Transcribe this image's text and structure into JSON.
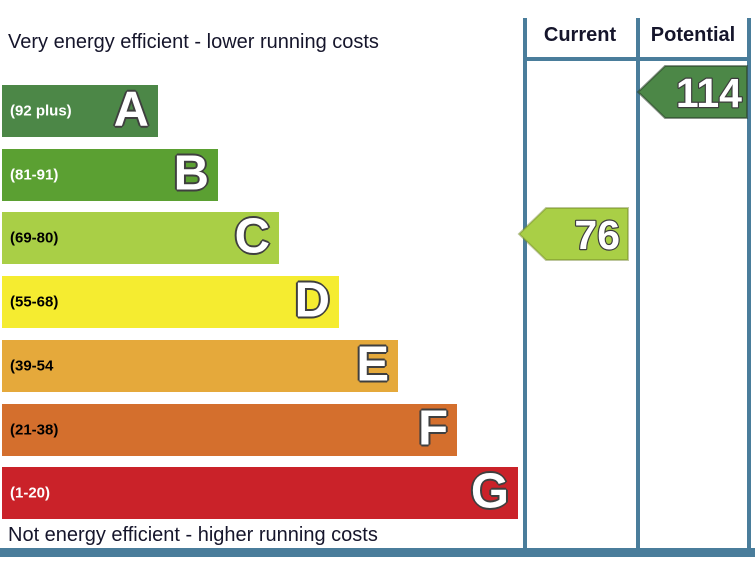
{
  "captions": {
    "top": "Very energy efficient - lower running costs",
    "bottom": "Not energy efficient - higher running costs"
  },
  "columns": {
    "current_label": "Current",
    "potential_label": "Potential"
  },
  "bands": [
    {
      "letter": "A",
      "range": "(92 plus)",
      "color": "#4c8747",
      "label_color": "#ffffff"
    },
    {
      "letter": "B",
      "range": "(81-91)",
      "color": "#5ba032",
      "label_color": "#ffffff"
    },
    {
      "letter": "C",
      "range": "(69-80)",
      "color": "#a9cf46",
      "label_color": "#000000"
    },
    {
      "letter": "D",
      "range": "(55-68)",
      "color": "#f5ec30",
      "label_color": "#000000"
    },
    {
      "letter": "E",
      "range": "(39-54",
      "color": "#e5a93b",
      "label_color": "#000000"
    },
    {
      "letter": "F",
      "range": "(21-38)",
      "color": "#d46f2d",
      "label_color": "#000000"
    },
    {
      "letter": "G",
      "range": "(1-20)",
      "color": "#ca2229",
      "label_color": "#ffffff"
    }
  ],
  "ratings": {
    "current": {
      "value": "76",
      "band": "C",
      "color": "#a9cf46"
    },
    "potential": {
      "value": "114",
      "band": "A",
      "color": "#4c8747"
    }
  },
  "line_color": "#4a7d9b",
  "chart_data": {
    "type": "bar",
    "categories": [
      "A",
      "B",
      "C",
      "D",
      "E",
      "F",
      "G"
    ],
    "band_labels": [
      "(92 plus)",
      "(81-91)",
      "(69-80)",
      "(55-68)",
      "(39-54",
      "(21-38)",
      "(1-20)"
    ],
    "band_colors": [
      "#4c8747",
      "#5ba032",
      "#a9cf46",
      "#f5ec30",
      "#e5a93b",
      "#d46f2d",
      "#ca2229"
    ],
    "annotation_top": "Very energy efficient - lower running costs",
    "annotation_bottom": "Not energy efficient - higher running costs",
    "series": [
      {
        "name": "Current",
        "value": 76,
        "band": "C"
      },
      {
        "name": "Potential",
        "value": 114,
        "band": "A"
      }
    ]
  }
}
